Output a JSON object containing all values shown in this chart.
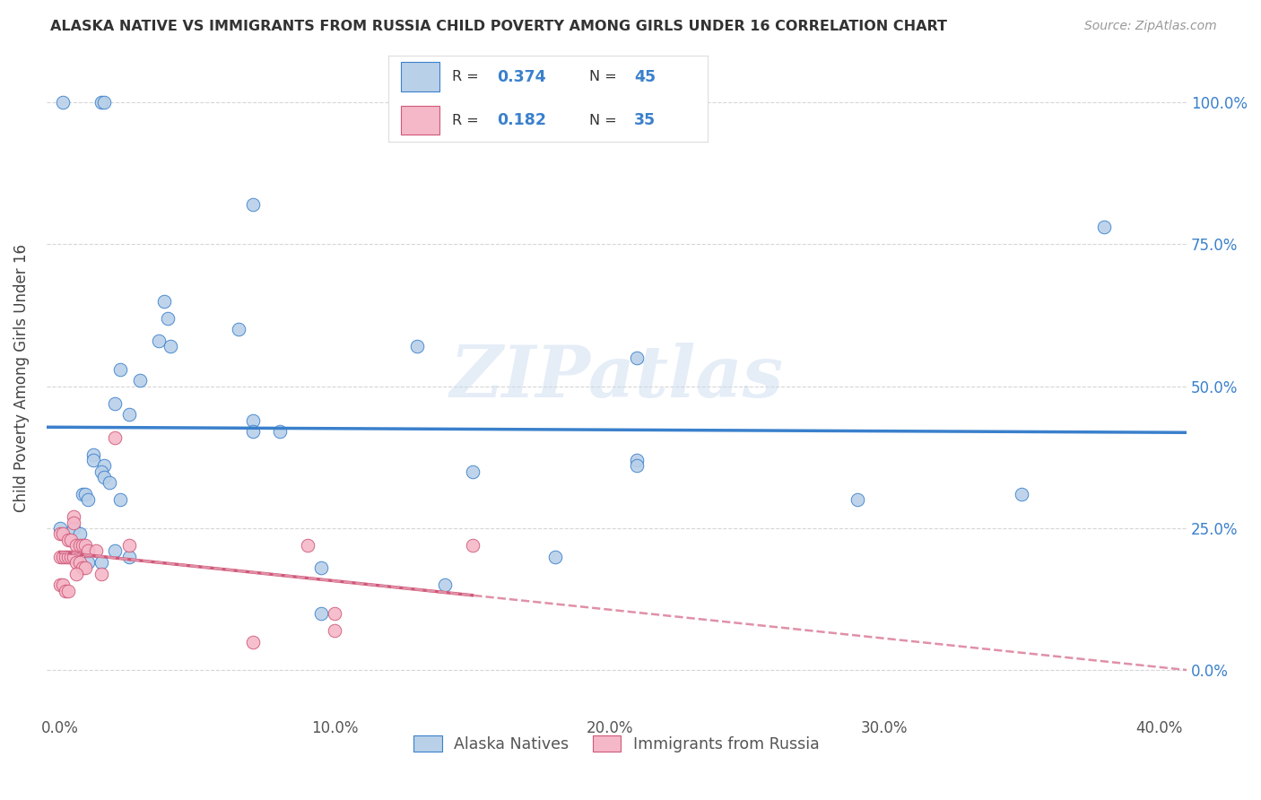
{
  "title": "ALASKA NATIVE VS IMMIGRANTS FROM RUSSIA CHILD POVERTY AMONG GIRLS UNDER 16 CORRELATION CHART",
  "source": "Source: ZipAtlas.com",
  "xlabel_ticks": [
    "0.0%",
    "10.0%",
    "20.0%",
    "30.0%",
    "40.0%"
  ],
  "xlabel_tick_vals": [
    0.0,
    0.1,
    0.2,
    0.3,
    0.4
  ],
  "ylabel": "Child Poverty Among Girls Under 16",
  "ylabel_ticks": [
    "0.0%",
    "25.0%",
    "50.0%",
    "75.0%",
    "100.0%"
  ],
  "ylabel_tick_vals": [
    0.0,
    0.25,
    0.5,
    0.75,
    1.0
  ],
  "xlim": [
    -0.005,
    0.41
  ],
  "ylim": [
    -0.07,
    1.1
  ],
  "legend_R1": "0.374",
  "legend_N1": "45",
  "legend_R2": "0.182",
  "legend_N2": "35",
  "color_blue": "#b8d0e8",
  "color_pink": "#f5b8c8",
  "trendline_blue": "#3a80cc",
  "trendline_pink": "#d05878",
  "trendline_pink_dash": "#e090a8",
  "watermark": "ZIPatlas",
  "blue_points": [
    [
      0.001,
      1.0
    ],
    [
      0.015,
      1.0
    ],
    [
      0.016,
      1.0
    ],
    [
      0.07,
      0.82
    ],
    [
      0.038,
      0.65
    ],
    [
      0.039,
      0.62
    ],
    [
      0.036,
      0.58
    ],
    [
      0.04,
      0.57
    ],
    [
      0.022,
      0.53
    ],
    [
      0.029,
      0.51
    ],
    [
      0.065,
      0.6
    ],
    [
      0.13,
      0.57
    ],
    [
      0.02,
      0.47
    ],
    [
      0.025,
      0.45
    ],
    [
      0.07,
      0.44
    ],
    [
      0.08,
      0.42
    ],
    [
      0.012,
      0.38
    ],
    [
      0.012,
      0.37
    ],
    [
      0.016,
      0.36
    ],
    [
      0.21,
      0.55
    ],
    [
      0.07,
      0.42
    ],
    [
      0.015,
      0.35
    ],
    [
      0.016,
      0.34
    ],
    [
      0.018,
      0.33
    ],
    [
      0.008,
      0.31
    ],
    [
      0.009,
      0.31
    ],
    [
      0.01,
      0.3
    ],
    [
      0.022,
      0.3
    ],
    [
      0.15,
      0.35
    ],
    [
      0.38,
      0.78
    ],
    [
      0.21,
      0.37
    ],
    [
      0.21,
      0.36
    ],
    [
      0.29,
      0.3
    ],
    [
      0.35,
      0.31
    ],
    [
      0.0,
      0.25
    ],
    [
      0.005,
      0.25
    ],
    [
      0.007,
      0.24
    ],
    [
      0.02,
      0.21
    ],
    [
      0.025,
      0.2
    ],
    [
      0.01,
      0.19
    ],
    [
      0.015,
      0.19
    ],
    [
      0.18,
      0.2
    ],
    [
      0.095,
      0.18
    ],
    [
      0.14,
      0.15
    ],
    [
      0.095,
      0.1
    ]
  ],
  "pink_points": [
    [
      0.02,
      0.41
    ],
    [
      0.005,
      0.27
    ],
    [
      0.005,
      0.26
    ],
    [
      0.0,
      0.24
    ],
    [
      0.001,
      0.24
    ],
    [
      0.003,
      0.23
    ],
    [
      0.004,
      0.23
    ],
    [
      0.006,
      0.22
    ],
    [
      0.007,
      0.22
    ],
    [
      0.008,
      0.22
    ],
    [
      0.009,
      0.22
    ],
    [
      0.01,
      0.21
    ],
    [
      0.013,
      0.21
    ],
    [
      0.0,
      0.2
    ],
    [
      0.001,
      0.2
    ],
    [
      0.002,
      0.2
    ],
    [
      0.003,
      0.2
    ],
    [
      0.004,
      0.2
    ],
    [
      0.005,
      0.2
    ],
    [
      0.006,
      0.19
    ],
    [
      0.007,
      0.19
    ],
    [
      0.008,
      0.18
    ],
    [
      0.009,
      0.18
    ],
    [
      0.006,
      0.17
    ],
    [
      0.015,
      0.17
    ],
    [
      0.0,
      0.15
    ],
    [
      0.001,
      0.15
    ],
    [
      0.002,
      0.14
    ],
    [
      0.003,
      0.14
    ],
    [
      0.025,
      0.22
    ],
    [
      0.09,
      0.22
    ],
    [
      0.15,
      0.22
    ],
    [
      0.1,
      0.1
    ],
    [
      0.1,
      0.07
    ],
    [
      0.07,
      0.05
    ]
  ]
}
